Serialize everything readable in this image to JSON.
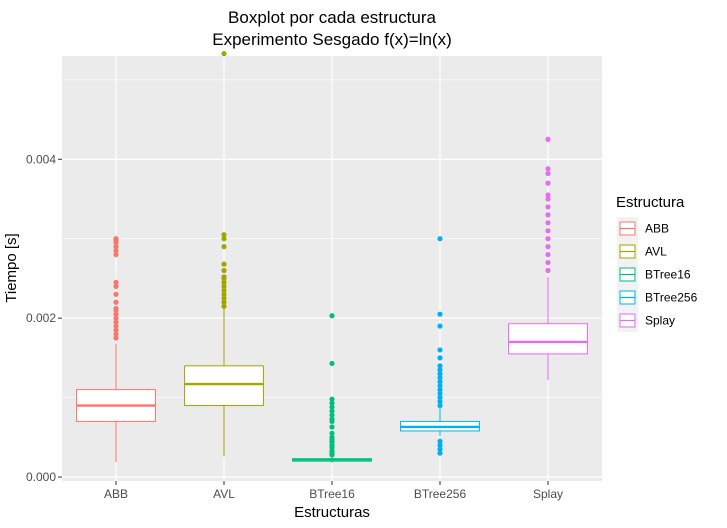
{
  "chart_data": {
    "type": "boxplot",
    "title": [
      "Boxplot por cada estructura",
      "Experimento Sesgado f(x)=ln(x)"
    ],
    "xlabel": "Estructuras",
    "ylabel": "Tiempo [s]",
    "ylim": [
      -5e-05,
      0.0053
    ],
    "y_ticks": [
      0.0,
      0.002,
      0.004
    ],
    "y_tick_labels": [
      "0.000",
      "0.002",
      "0.004"
    ],
    "grid": true,
    "legend": {
      "title": "Estructura",
      "placement": "right"
    },
    "categories": [
      "ABB",
      "AVL",
      "BTree16",
      "BTree256",
      "Splay"
    ],
    "series": [
      {
        "name": "ABB",
        "color": "#F8766D",
        "min": 0.00019,
        "q1": 0.0007,
        "median": 0.0009,
        "q3": 0.0011,
        "max": 0.00168,
        "outliers": [
          0.003,
          0.00298,
          0.00295,
          0.0029,
          0.00285,
          0.0028,
          0.00245,
          0.0024,
          0.0023,
          0.0022,
          0.00212,
          0.0021,
          0.00205,
          0.002,
          0.00195,
          0.0019,
          0.00185,
          0.0018,
          0.00175
        ]
      },
      {
        "name": "AVL",
        "color": "#A3A500",
        "min": 0.00026,
        "q1": 0.0009,
        "median": 0.00117,
        "q3": 0.0014,
        "max": 0.00212,
        "outliers": [
          0.00533,
          0.00305,
          0.003,
          0.0029,
          0.00268,
          0.0026,
          0.00252,
          0.0025,
          0.00245,
          0.0024,
          0.00235,
          0.0023,
          0.00225,
          0.0022,
          0.00215
        ]
      },
      {
        "name": "BTree16",
        "color": "#00BF7D",
        "min": 0.00018,
        "q1": 0.0002,
        "median": 0.00022,
        "q3": 0.00023,
        "max": 0.00026,
        "outliers": [
          0.00203,
          0.00143,
          0.00098,
          0.00093,
          0.00088,
          0.00083,
          0.00078,
          0.00073,
          0.0007,
          0.00063,
          0.00055,
          0.0005,
          0.00047,
          0.00044,
          0.0004,
          0.00037,
          0.00033,
          0.0003,
          0.00028
        ]
      },
      {
        "name": "BTree256",
        "color": "#00B0F6",
        "min": 0.00052,
        "q1": 0.00058,
        "median": 0.00063,
        "q3": 0.0007,
        "max": 0.00088,
        "outliers": [
          0.003,
          0.00205,
          0.0019,
          0.0016,
          0.0015,
          0.0014,
          0.00135,
          0.0013,
          0.00125,
          0.0012,
          0.00115,
          0.0011,
          0.00105,
          0.001,
          0.00095,
          0.0009,
          0.00045,
          0.0004,
          0.00035,
          0.0003
        ]
      },
      {
        "name": "Splay",
        "color": "#E76BF3",
        "min": 0.00122,
        "q1": 0.00155,
        "median": 0.0017,
        "q3": 0.00193,
        "max": 0.00252,
        "outliers": [
          0.00425,
          0.00388,
          0.00382,
          0.0037,
          0.00355,
          0.0035,
          0.0034,
          0.0033,
          0.0032,
          0.0031,
          0.003,
          0.0029,
          0.0028,
          0.0027,
          0.0026
        ]
      }
    ]
  }
}
